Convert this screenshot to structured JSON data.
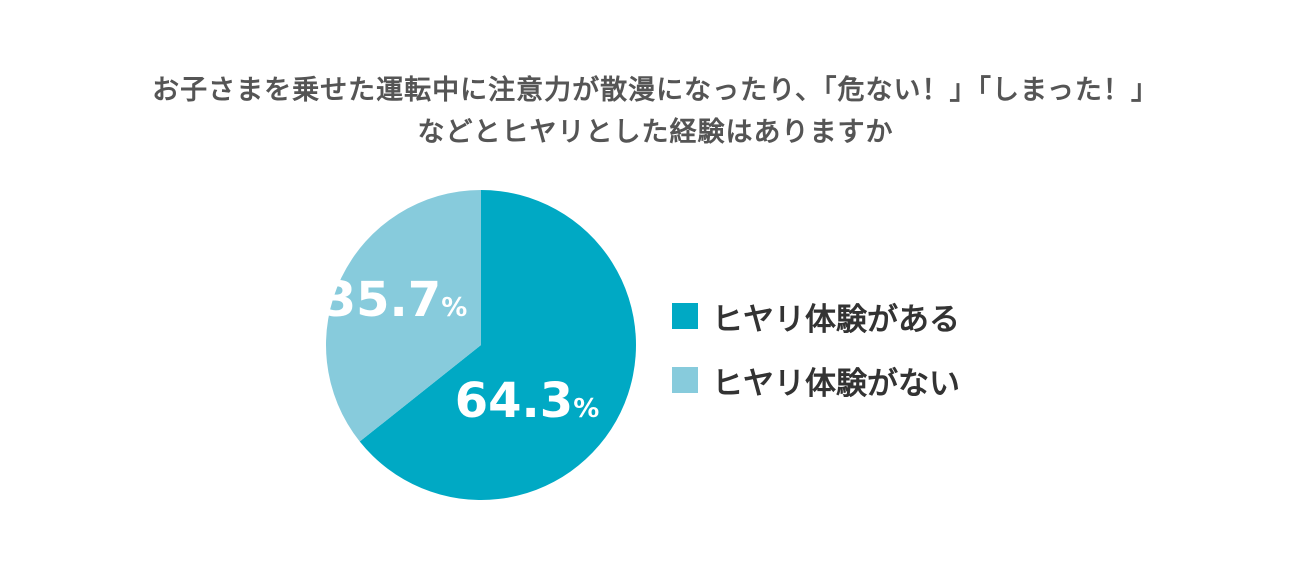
{
  "chart_data": {
    "type": "pie",
    "title_lines": [
      "お子さまを乗せた運転中に注意力が散漫になったり、「危ない！」「しまった！」",
      "などとヒヤリとした経験はありますか"
    ],
    "unit": "%",
    "slices": [
      {
        "label": "ヒヤリ体験がある",
        "value": 64.3,
        "value_text": "64.3",
        "color": "#00a9c4"
      },
      {
        "label": "ヒヤリ体験がない",
        "value": 35.7,
        "value_text": "35.7",
        "color": "#87cbdc"
      }
    ]
  }
}
